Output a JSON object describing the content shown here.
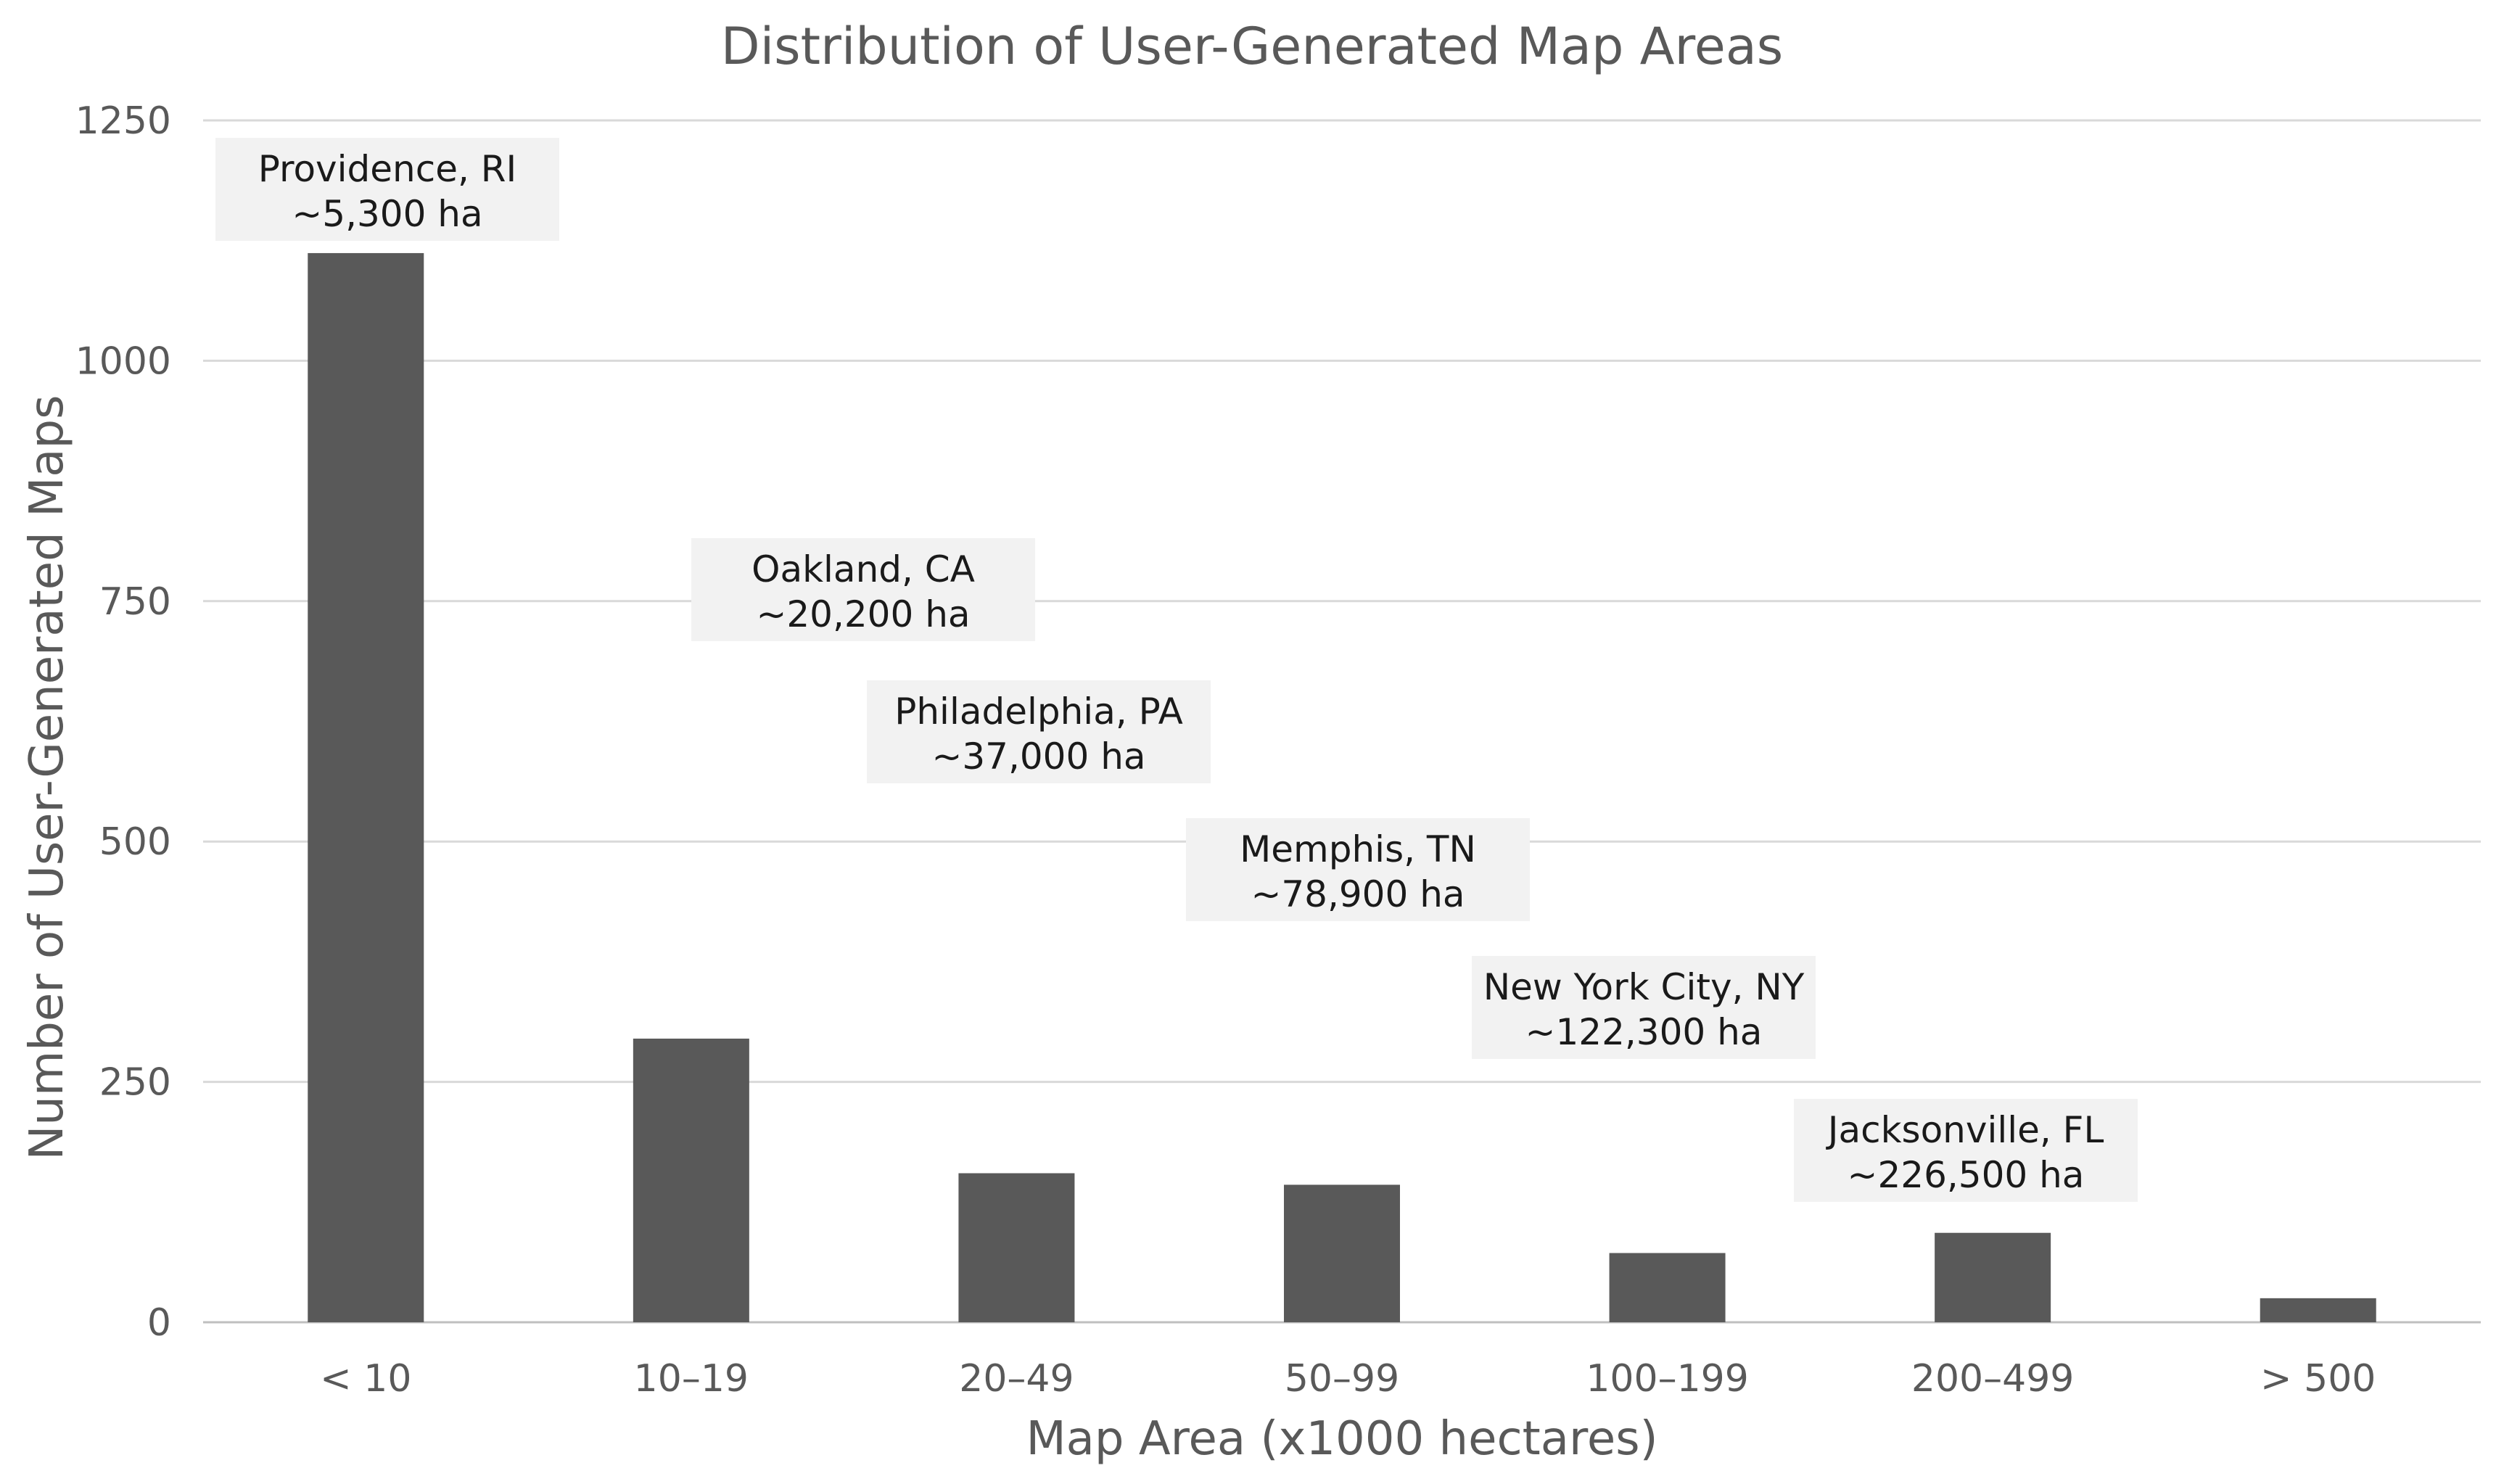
{
  "chart_data": {
    "type": "bar",
    "title": "Distribution of User-Generated Map Areas",
    "xlabel": "Map Area (x1000 hectares)",
    "ylabel": "Number of User-Generated Maps",
    "categories": [
      "< 10",
      "10–19",
      "20–49",
      "50–99",
      "100–199",
      "200–499",
      "> 500"
    ],
    "values": [
      1112,
      295,
      155,
      143,
      72,
      93,
      25
    ],
    "ylim": [
      0,
      1250
    ],
    "yticks": [
      0,
      250,
      500,
      750,
      1000,
      1250
    ],
    "grid": true,
    "legend": "none",
    "bar_color": "#595959",
    "annotations": [
      {
        "category": "< 10",
        "line1": "Providence, RI",
        "line2": "~5,300 ha"
      },
      {
        "category": "10–19",
        "line1": "Oakland, CA",
        "line2": "~20,200 ha"
      },
      {
        "category": "20–49",
        "line1": "Philadelphia, PA",
        "line2": "~37,000 ha"
      },
      {
        "category": "50–99",
        "line1": "Memphis, TN",
        "line2": "~78,900 ha"
      },
      {
        "category": "100–199",
        "line1": "New York City, NY",
        "line2": "~122,300 ha"
      },
      {
        "category": "200–499",
        "line1": "Jacksonville, FL",
        "line2": "~226,500 ha"
      }
    ]
  }
}
